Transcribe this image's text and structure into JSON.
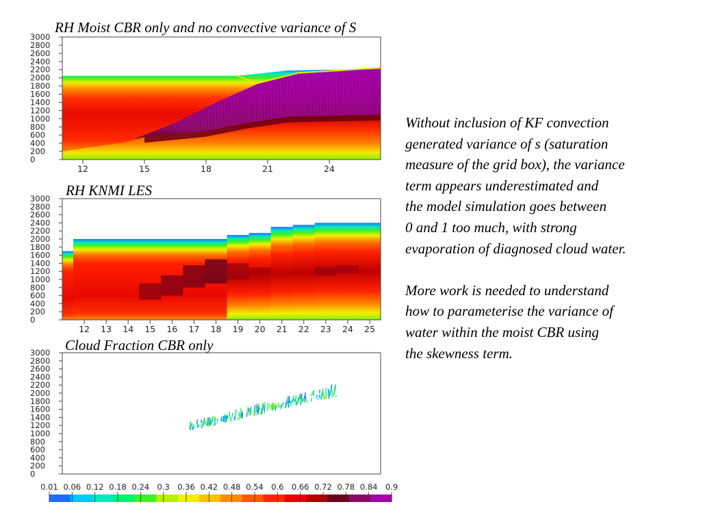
{
  "panels": [
    {
      "title": "RH Moist CBR only and no convective variance of S",
      "yticks": [
        "0",
        "200",
        "400",
        "600",
        "800",
        "1000",
        "1200",
        "1400",
        "1600",
        "1800",
        "2000",
        "2200",
        "2400",
        "2600",
        "2800",
        "3000"
      ],
      "xticks": [
        "12",
        "15",
        "18",
        "21",
        "24"
      ],
      "xlim": [
        11,
        26.5
      ],
      "ylim": [
        0,
        3000
      ]
    },
    {
      "title": "RH KNMI LES",
      "yticks": [
        "0",
        "200",
        "400",
        "600",
        "800",
        "1000",
        "1200",
        "1400",
        "1600",
        "1800",
        "2000",
        "2200",
        "2400",
        "2600",
        "2800",
        "3000"
      ],
      "xticks": [
        "12",
        "13",
        "14",
        "15",
        "16",
        "17",
        "18",
        "19",
        "20",
        "21",
        "22",
        "23",
        "24",
        "25"
      ],
      "xlim": [
        11,
        25.5
      ],
      "ylim": [
        0,
        3000
      ]
    },
    {
      "title": "Cloud Fraction CBR only",
      "yticks": [
        "0",
        "200",
        "400",
        "600",
        "800",
        "1000",
        "1200",
        "1400",
        "1600",
        "1800",
        "2000",
        "2200",
        "2400",
        "2600",
        "2800",
        "3000"
      ],
      "xticks": [],
      "xlim": [
        0,
        1
      ],
      "ylim": [
        0,
        3000
      ]
    }
  ],
  "colorbar": {
    "labels": [
      "0.01",
      "0.06",
      "0.12",
      "0.18",
      "0.24",
      "0.3",
      "0.36",
      "0.42",
      "0.48",
      "0.54",
      "0.6",
      "0.66",
      "0.72",
      "0.78",
      "0.84",
      "0.9"
    ],
    "colors": [
      "#1f6cff",
      "#00c8ff",
      "#00e8c0",
      "#00f070",
      "#40f020",
      "#b8f000",
      "#f0f000",
      "#ffc000",
      "#ff8c00",
      "#ff5a00",
      "#ff2800",
      "#e80000",
      "#b00000",
      "#6a0018",
      "#8a0a6a",
      "#a400a8"
    ]
  },
  "side_text": {
    "paragraph1": [
      "Without inclusion of KF convection",
      "generated variance of s (saturation",
      "measure of the grid box), the variance",
      "term appears underestimated and",
      "the model simulation goes between",
      "0 and 1 too much, with strong",
      "evaporation of diagnosed cloud water."
    ],
    "paragraph2": [
      "More work is needed to understand",
      "how to parameterise the variance of",
      "water within the moist CBR using",
      "the skewness term."
    ]
  },
  "chart_data": [
    {
      "type": "heatmap",
      "title": "RH Moist CBR only and no convective variance of S",
      "x_ticks": [
        12,
        15,
        18,
        21,
        24
      ],
      "y_ticks": [
        0,
        200,
        400,
        600,
        800,
        1000,
        1200,
        1400,
        1600,
        1800,
        2000,
        2200,
        2400,
        2600,
        2800,
        3000
      ],
      "xlim": [
        11,
        26.5
      ],
      "ylim": [
        0,
        3000
      ],
      "boundary_layer_top": [
        [
          11,
          2050
        ],
        [
          19.5,
          2050
        ],
        [
          22,
          2180
        ],
        [
          26.5,
          2220
        ]
      ],
      "saturated_layer_top": [
        [
          14.5,
          500
        ],
        [
          16.5,
          900
        ],
        [
          18.5,
          1400
        ],
        [
          20.5,
          1850
        ],
        [
          22.5,
          2100
        ],
        [
          26.5,
          2220
        ]
      ],
      "saturated_layer_base": [
        [
          15,
          550
        ],
        [
          18,
          700
        ],
        [
          20,
          900
        ],
        [
          22,
          1050
        ],
        [
          26.5,
          1100
        ]
      ]
    },
    {
      "type": "heatmap",
      "title": "RH KNMI LES",
      "x_ticks": [
        12,
        13,
        14,
        15,
        16,
        17,
        18,
        19,
        20,
        21,
        22,
        23,
        24,
        25
      ],
      "xlim": [
        11,
        25.5
      ],
      "ylim": [
        0,
        3000
      ],
      "boundary_layer_top_by_hour": {
        "11": 1700,
        "12": 2000,
        "13": 2000,
        "14": 2000,
        "15": 2000,
        "16": 2000,
        "17": 2000,
        "18": 2000,
        "19": 2100,
        "20": 2150,
        "21": 2300,
        "22": 2350,
        "23": 2400,
        "24": 2400,
        "25": 2400
      }
    },
    {
      "type": "scatter",
      "title": "Cloud Fraction CBR only",
      "ylim": [
        0,
        3000
      ],
      "cloud_layer_base": [
        [
          0.4,
          1050
        ],
        [
          0.86,
          1900
        ]
      ],
      "cloud_layer_top": [
        [
          0.4,
          1300
        ],
        [
          0.86,
          2250
        ]
      ]
    }
  ]
}
